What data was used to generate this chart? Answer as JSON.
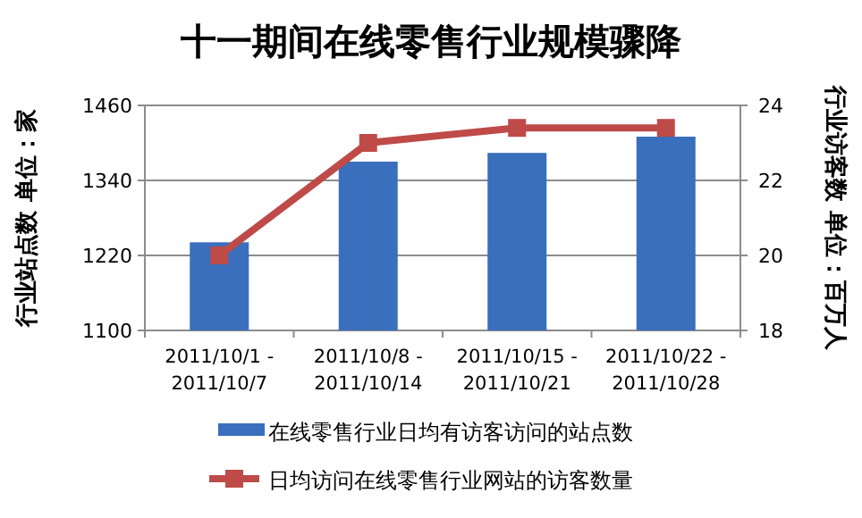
{
  "chart_data": {
    "type": "bar",
    "title": "十一期间在线零售行业规模骤降",
    "categories": [
      "2011/10/1 - 2011/10/7",
      "2011/10/8 - 2011/10/14",
      "2011/10/15 - 2011/10/21",
      "2011/10/22 - 2011/10/28"
    ],
    "series": [
      {
        "name": "在线零售行业日均有访客访问的站点数",
        "color": "#3a6fbd",
        "values": [
          1241,
          1370,
          1384,
          1410
        ]
      },
      {
        "name": "日均访问在线零售行业网站的访客数量",
        "type": "line",
        "axis": "y2",
        "color": "#be4b48",
        "marker": "square",
        "values": [
          20.0,
          23.0,
          23.4,
          23.4
        ]
      }
    ],
    "ylabel": "行业站点数 单位：家",
    "y2label": "行业访客数 单位：百万人",
    "ylim": [
      1100,
      1460
    ],
    "yticks": [
      1100,
      1220,
      1340,
      1460
    ],
    "y2lim": [
      18,
      24
    ],
    "y2ticks": [
      18,
      20,
      22,
      24
    ],
    "grid": "y",
    "legend": "bottom"
  }
}
